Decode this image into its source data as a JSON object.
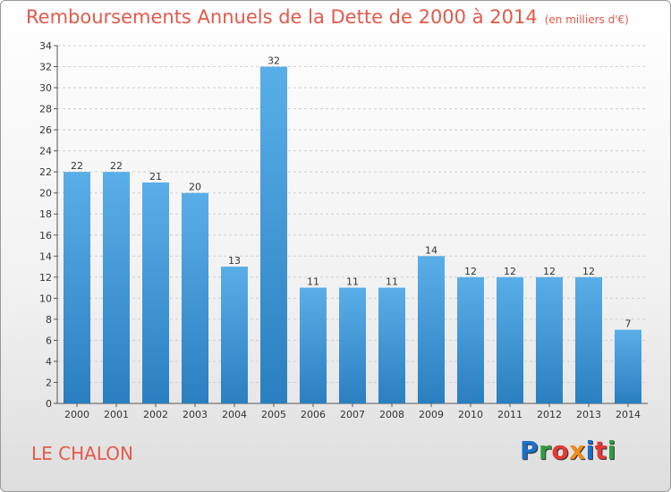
{
  "title": "Remboursements Annuels de la Dette de 2000 à 2014",
  "subtitle": "(en milliers d'€)",
  "commune": "LE CHALON",
  "logo": {
    "text": "Proxiti",
    "letter_colors": [
      "#1a6fc9",
      "#2f9e3f",
      "#e53935",
      "#f28c1a",
      "#1a6fc9",
      "#e53935",
      "#2f9e3f"
    ]
  },
  "colors": {
    "bar_top": "#5aaee8",
    "bar_bottom": "#2a7fc0",
    "title": "#e3594a",
    "grid": "#cfcfcf"
  },
  "chart_data": {
    "type": "bar",
    "title": "Remboursements Annuels de la Dette de 2000 à 2014",
    "xlabel": "",
    "ylabel": "",
    "categories": [
      "2000",
      "2001",
      "2002",
      "2003",
      "2004",
      "2005",
      "2006",
      "2007",
      "2008",
      "2009",
      "2010",
      "2011",
      "2012",
      "2013",
      "2014"
    ],
    "values": [
      22,
      22,
      21,
      20,
      13,
      32,
      11,
      11,
      11,
      14,
      12,
      12,
      12,
      12,
      7
    ],
    "ylim": [
      0,
      34
    ],
    "yticks": [
      0,
      2,
      4,
      6,
      8,
      10,
      12,
      14,
      16,
      18,
      20,
      22,
      24,
      26,
      28,
      30,
      32,
      34
    ],
    "grid": true
  }
}
